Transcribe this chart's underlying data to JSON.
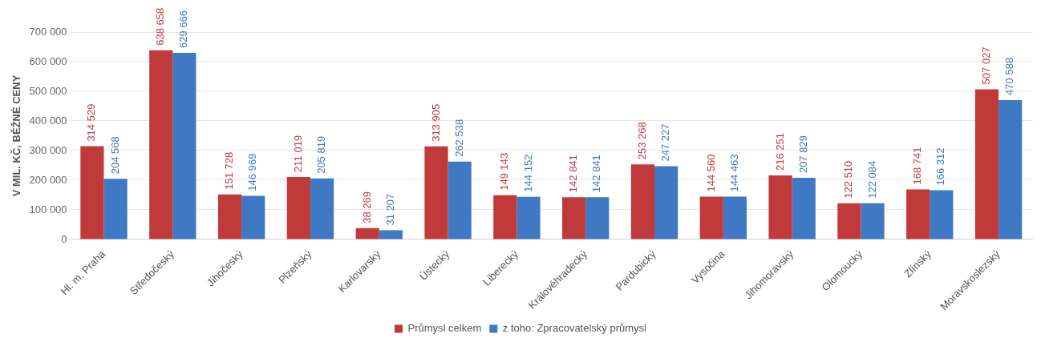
{
  "chart_data": {
    "type": "bar",
    "ylabel": "V MIL. KČ, BĚŽNÉ CENY",
    "categories": [
      "Hl. m. Praha",
      "Středočeský",
      "Jihočeský",
      "Plzeňský",
      "Karlovarský",
      "Ústecký",
      "Liberecký",
      "Královéhradecký",
      "Pardubický",
      "Vysočina",
      "Jihomoravský",
      "Olomoucký",
      "Zlínský",
      "Moravskoslezský"
    ],
    "series": [
      {
        "name": "Průmysl celkem",
        "color": "#c0393b",
        "values": [
          314529,
          638658,
          151728,
          211019,
          38269,
          313905,
          149143,
          142841,
          253268,
          144560,
          216251,
          122510,
          168741,
          507027
        ],
        "value_labels": [
          "314 529",
          "638 658",
          "151 728",
          "211 019",
          "38 269",
          "313 905",
          "149 143",
          "142 841",
          "253 268",
          "144 560",
          "216 251",
          "122 510",
          "168 741",
          "507 027"
        ]
      },
      {
        "name": "z toho: Zpracovatelský průmysl",
        "color": "#3f78c3",
        "values": [
          204568,
          629666,
          146969,
          205819,
          31207,
          262538,
          144152,
          142841,
          247227,
          144463,
          207829,
          122084,
          166312,
          470588
        ],
        "value_labels": [
          "204 568",
          "629 666",
          "146 969",
          "205 819",
          "31 207",
          "262 538",
          "144 152",
          "142 841",
          "247 227",
          "144 463",
          "207 829",
          "122 084",
          "166 312",
          "470 588"
        ]
      }
    ],
    "ylim": [
      0,
      700000
    ],
    "yticks": [
      {
        "value": 0,
        "label": "0"
      },
      {
        "value": 100000,
        "label": "100 000"
      },
      {
        "value": 200000,
        "label": "200 000"
      },
      {
        "value": 300000,
        "label": "300 000"
      },
      {
        "value": 400000,
        "label": "400 000"
      },
      {
        "value": 500000,
        "label": "500 000"
      },
      {
        "value": 600000,
        "label": "600 000"
      },
      {
        "value": 700000,
        "label": "700 000"
      }
    ],
    "grid": "y",
    "legend": "bottom"
  }
}
